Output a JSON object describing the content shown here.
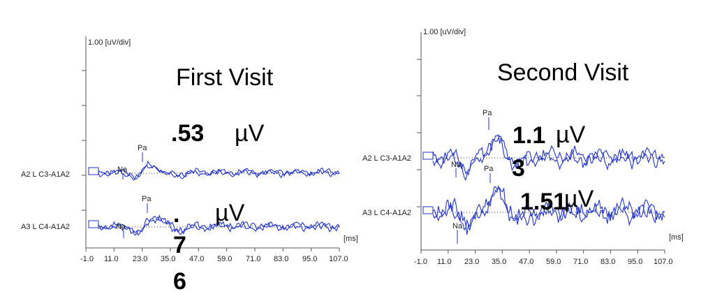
{
  "colors": {
    "trace": "#2233cc",
    "axis": "#555555",
    "text": "#000000"
  },
  "chart_data": [
    {
      "type": "line",
      "title": "First Visit",
      "scale_label": "1.00 [uV/div]",
      "x_unit_label": "[ms]",
      "x_ticks": [
        "-1.0",
        "11.0",
        "23.0",
        "35.0",
        "47.0",
        "59.0",
        "71.0",
        "83.0",
        "95.0",
        "107.0"
      ],
      "xlim": [
        -1.0,
        107.0
      ],
      "channels": [
        {
          "label": "A2 L C3-A1A2",
          "Na": 16.5,
          "Pa": 22.5,
          "na_label": "Na",
          "pa_label": "Pa"
        },
        {
          "label": "A3 L C4-A1A2",
          "Na": 17.0,
          "Pa": 25.0,
          "na_label": "Na",
          "pa_label": "Pa"
        }
      ],
      "amplitudes": [
        {
          "value": ".53",
          "unit": "µV"
        },
        {
          "value": ".76",
          "unit": "µV"
        }
      ]
    },
    {
      "type": "line",
      "title": "Second Visit",
      "scale_label": "1.00 [uV/div]",
      "x_unit_label": "[ms]",
      "x_ticks": [
        "-1.0",
        "11.0",
        "23.0",
        "35.0",
        "47.0",
        "59.0",
        "71.0",
        "83.0",
        "95.0",
        "107.0"
      ],
      "xlim": [
        -1.0,
        107.0
      ],
      "channels": [
        {
          "label": "A2 L C3-A1A2",
          "Na": 15.0,
          "Pa": 28.5,
          "na_label": "Na",
          "pa_label": "Pa"
        },
        {
          "label": "A3 L C4-A1A2",
          "Na": 16.0,
          "Pa": 29.0,
          "na_label": "Na",
          "pa_label": "Pa"
        }
      ],
      "amplitudes": [
        {
          "value": "1.13",
          "unit": "µV"
        },
        {
          "value": "1.51",
          "unit": "µV"
        }
      ]
    }
  ]
}
